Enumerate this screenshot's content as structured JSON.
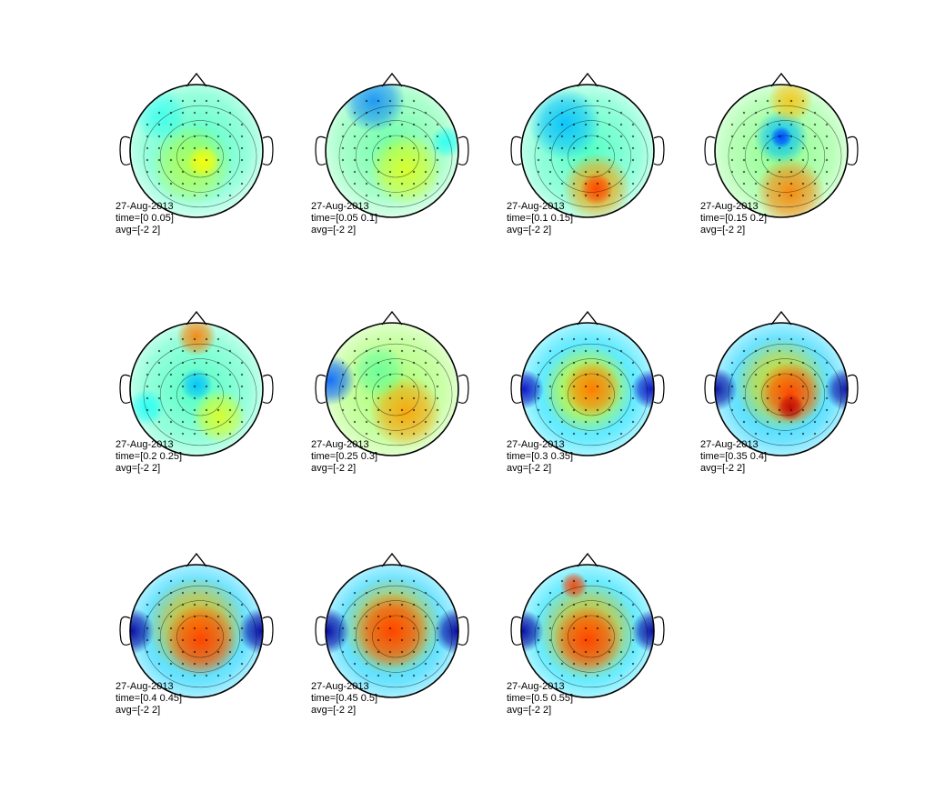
{
  "colors": {
    "background": "#ffffff",
    "outline": "#000000",
    "jet_low": "#00008f",
    "jet_mid": "#7fff7f",
    "jet_high": "#8f0000"
  },
  "topoplots": [
    {
      "date": "27-Aug-2013",
      "time": "time=[0 0.05]",
      "avg": "avg=[-2 2]",
      "pattern": "mixed, yellow focus centre-parietal"
    },
    {
      "date": "27-Aug-2013",
      "time": "time=[0.05 0.1]",
      "avg": "avg=[-2 2]",
      "pattern": "mixed, blue frontal edge, yellow centre"
    },
    {
      "date": "27-Aug-2013",
      "time": "time=[0.1 0.15]",
      "avg": "avg=[-2 2]",
      "pattern": "blue left-frontal, red posterior"
    },
    {
      "date": "27-Aug-2013",
      "time": "time=[0.15 0.2]",
      "avg": "avg=[-2 2]",
      "pattern": "blue central focus, red posterior"
    },
    {
      "date": "27-Aug-2013",
      "time": "time=[0.2 0.25]",
      "avg": "avg=[-2 2]",
      "pattern": "orange frontal, blue central"
    },
    {
      "date": "27-Aug-2013",
      "time": "time=[0.25 0.3]",
      "avg": "avg=[-2 2]",
      "pattern": "orange right-parietal, blue temporal"
    },
    {
      "date": "27-Aug-2013",
      "time": "time=[0.3 0.35]",
      "avg": "avg=[-2 2]",
      "pattern": "red central, blue temporal"
    },
    {
      "date": "27-Aug-2013",
      "time": "time=[0.35 0.4]",
      "avg": "avg=[-2 2]",
      "pattern": "dark red central, blue temporal"
    },
    {
      "date": "27-Aug-2013",
      "time": "time=[0.4 0.45]",
      "avg": "avg=[-2 2]",
      "pattern": "red midline band, blue temporal"
    },
    {
      "date": "27-Aug-2013",
      "time": "time=[0.45 0.5]",
      "avg": "avg=[-2 2]",
      "pattern": "red midline band, blue temporal"
    },
    {
      "date": "27-Aug-2013",
      "time": "time=[0.5 0.55]",
      "avg": "avg=[-2 2]",
      "pattern": "red midline band, blue temporal"
    }
  ]
}
